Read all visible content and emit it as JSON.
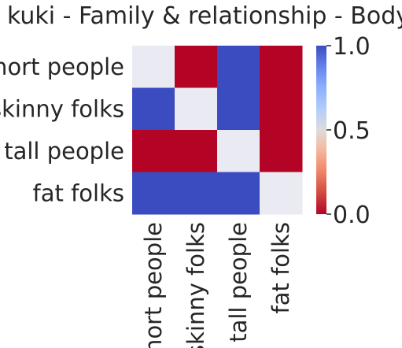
{
  "chart_data": {
    "type": "heatmap",
    "title": "kuki - Family & relationship - Body",
    "rows": [
      "short people",
      "skinny folks",
      "tall people",
      "fat folks"
    ],
    "columns": [
      "short people",
      "skinny folks",
      "tall people",
      "fat folks"
    ],
    "values": [
      [
        null,
        0.0,
        1.0,
        0.0
      ],
      [
        1.0,
        null,
        1.0,
        0.0
      ],
      [
        0.0,
        0.0,
        null,
        0.0
      ],
      [
        1.0,
        1.0,
        1.0,
        null
      ]
    ],
    "vmin": 0.0,
    "vmax": 1.0,
    "colormap": "coolwarm_r",
    "missing_color": "#eaeaf2",
    "colorbar": {
      "ticks": [
        0.0,
        0.5,
        1.0
      ],
      "tick_labels": [
        "0.0",
        "0.5",
        "1.0"
      ],
      "colors": [
        "#b40426",
        "#dddcdc",
        "#3b4cc0"
      ]
    }
  }
}
